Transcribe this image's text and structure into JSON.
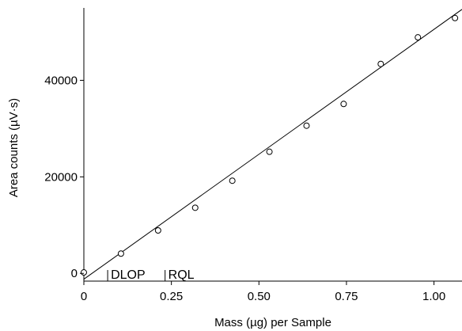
{
  "chart_data": {
    "type": "scatter",
    "title": "",
    "xlabel": "Mass (µg) per Sample",
    "ylabel": "Area counts (µV·s)",
    "xlim": [
      0,
      1.08
    ],
    "ylim": [
      -1600,
      55000
    ],
    "x_ticks": [
      0,
      0.25,
      0.5,
      0.75,
      1.0
    ],
    "x_tick_labels": [
      "0",
      "0.25",
      "0.50",
      "0.75",
      "1.00"
    ],
    "y_ticks": [
      0,
      20000,
      40000
    ],
    "y_tick_labels": [
      "0",
      "20000",
      "40000"
    ],
    "grid": false,
    "legend": "none",
    "series": [
      {
        "marker": "open-circle",
        "x": [
          0.0,
          0.106,
          0.212,
          0.318,
          0.424,
          0.53,
          0.636,
          0.742,
          0.848,
          0.954,
          1.06
        ],
        "y": [
          200,
          4100,
          8900,
          13600,
          19200,
          25200,
          30600,
          35100,
          43400,
          48900,
          52900
        ]
      }
    ],
    "fit_line": {
      "x": [
        0.0,
        1.08
      ],
      "y": [
        -1200,
        54700
      ]
    },
    "reference_markers": [
      {
        "label": "DLOP",
        "x": 0.068
      },
      {
        "label": "RQL",
        "x": 0.232
      }
    ]
  }
}
